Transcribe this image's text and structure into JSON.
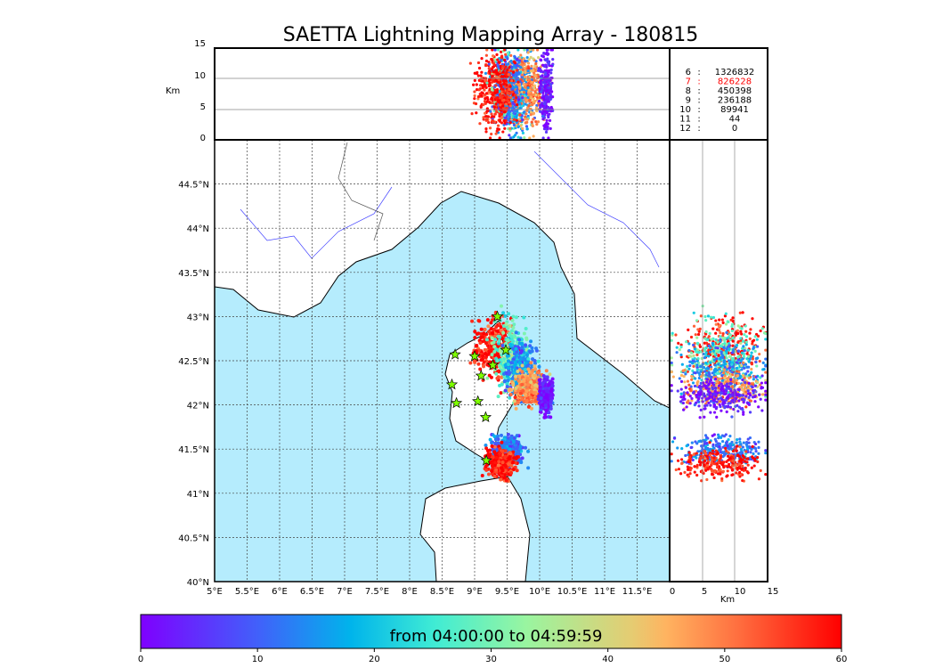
{
  "chart_data": {
    "type": "scatter",
    "title": "SAETTA Lightning Mapping Array - 180815",
    "map": {
      "lon_range": [
        5,
        12
      ],
      "lat_range": [
        40,
        45
      ],
      "lon_ticks": [
        "5°E",
        "5.5°E",
        "6°E",
        "6.5°E",
        "7°E",
        "7.5°E",
        "8°E",
        "8.5°E",
        "9°E",
        "9.5°E",
        "10°E",
        "10.5°E",
        "11°E",
        "11.5°E"
      ],
      "lat_ticks": [
        "40°N",
        "40.5°N",
        "41°N",
        "41.5°N",
        "42°N",
        "42.5°N",
        "43°N",
        "43.5°N",
        "44°N",
        "44.5°N"
      ],
      "stations": [
        [
          8.7,
          42.57
        ],
        [
          9.0,
          42.55
        ],
        [
          9.28,
          42.45
        ],
        [
          9.1,
          42.33
        ],
        [
          8.65,
          42.23
        ],
        [
          8.72,
          42.02
        ],
        [
          9.05,
          42.04
        ],
        [
          9.17,
          41.86
        ],
        [
          9.18,
          41.37
        ],
        [
          9.35,
          43.0
        ],
        [
          9.48,
          42.62
        ]
      ],
      "clusters": [
        {
          "lon": 9.3,
          "lat": 42.65,
          "slon": 0.15,
          "slat": 0.18,
          "minute": 58
        },
        {
          "lon": 9.55,
          "lat": 42.55,
          "slon": 0.12,
          "slat": 0.2,
          "minute": 28
        },
        {
          "lon": 9.7,
          "lat": 42.4,
          "slon": 0.12,
          "slat": 0.15,
          "minute": 15
        },
        {
          "lon": 9.85,
          "lat": 42.2,
          "slon": 0.12,
          "slat": 0.1,
          "minute": 48
        },
        {
          "lon": 10.1,
          "lat": 42.1,
          "slon": 0.05,
          "slat": 0.1,
          "minute": 2
        },
        {
          "lon": 9.5,
          "lat": 41.5,
          "slon": 0.12,
          "slat": 0.08,
          "minute": 12
        },
        {
          "lon": 9.4,
          "lat": 41.35,
          "slon": 0.12,
          "slat": 0.08,
          "minute": 58
        }
      ]
    },
    "top_panel": {
      "ylabel": "Km",
      "yticks": [
        "0",
        "5",
        "10",
        "15"
      ],
      "yrange": [
        0,
        15
      ]
    },
    "right_panel": {
      "xlabel": "Km",
      "xticks": [
        "0",
        "5",
        "10",
        "15"
      ],
      "xrange": [
        0,
        15
      ]
    },
    "station_counts": [
      {
        "n": "6",
        "count": "1326832",
        "highlight": false
      },
      {
        "n": "7",
        "count": "826228",
        "highlight": true
      },
      {
        "n": "8",
        "count": "450398",
        "highlight": false
      },
      {
        "n": "9",
        "count": "236188",
        "highlight": false
      },
      {
        "n": "10",
        "count": "89941",
        "highlight": false
      },
      {
        "n": "11",
        "count": "44",
        "highlight": false
      },
      {
        "n": "12",
        "count": "0",
        "highlight": false
      }
    ],
    "colorbar": {
      "label": "from 04:00:00 to 04:59:59",
      "ticks": [
        "0",
        "10",
        "20",
        "30",
        "40",
        "50",
        "60"
      ],
      "range": [
        0,
        60
      ]
    }
  },
  "colors": {
    "sea": "#b5ecfd",
    "highlight": "#ff0000"
  }
}
